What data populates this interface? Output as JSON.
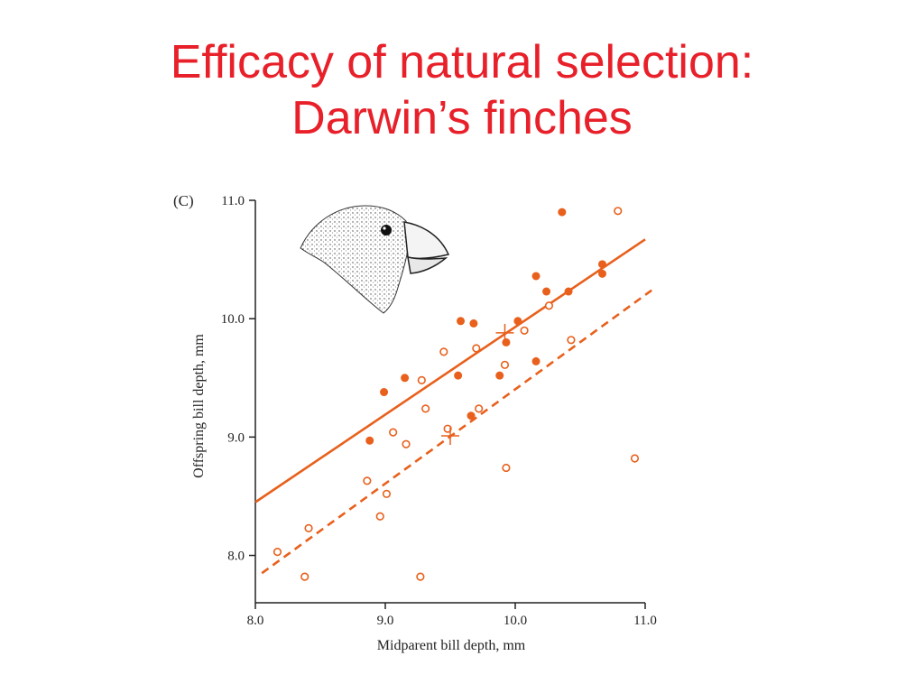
{
  "slide": {
    "title_line1": "Efficacy of natural selection:",
    "title_line2": "Darwin’s finches",
    "title_color": "#e8202a"
  },
  "chart_data": {
    "type": "scatter",
    "panel_label": "(C)",
    "xlabel": "Midparent bill depth, mm",
    "ylabel": "Offspring bill depth, mm",
    "xlim": [
      8.0,
      11.0
    ],
    "ylim": [
      7.6,
      11.0
    ],
    "x_ticks": [
      "8.0",
      "9.0",
      "10.0",
      "11.0"
    ],
    "y_ticks": [
      "8.0",
      "9.0",
      "10.0",
      "11.0"
    ],
    "grid": false,
    "colors": {
      "series": "#e8601c",
      "axis": "#222222"
    },
    "series": [
      {
        "marker": "filled-circle",
        "points": [
          [
            8.88,
            8.97
          ],
          [
            8.99,
            9.38
          ],
          [
            9.15,
            9.5
          ],
          [
            9.56,
            9.52
          ],
          [
            9.58,
            9.98
          ],
          [
            9.68,
            9.96
          ],
          [
            9.66,
            9.18
          ],
          [
            9.88,
            9.52
          ],
          [
            9.93,
            9.8
          ],
          [
            10.02,
            9.98
          ],
          [
            10.16,
            9.64
          ],
          [
            10.16,
            10.36
          ],
          [
            10.24,
            10.23
          ],
          [
            10.36,
            10.9
          ],
          [
            10.41,
            10.23
          ],
          [
            10.67,
            10.46
          ],
          [
            10.67,
            10.38
          ]
        ],
        "trend": {
          "style": "solid",
          "from": [
            8.0,
            8.45
          ],
          "to": [
            11.0,
            10.67
          ]
        },
        "mean_marker": [
          9.92,
          9.88
        ]
      },
      {
        "marker": "open-circle",
        "points": [
          [
            8.17,
            8.03
          ],
          [
            8.38,
            7.82
          ],
          [
            8.41,
            8.23
          ],
          [
            8.86,
            8.63
          ],
          [
            8.96,
            8.33
          ],
          [
            9.01,
            8.52
          ],
          [
            9.06,
            9.04
          ],
          [
            9.16,
            8.94
          ],
          [
            9.27,
            7.82
          ],
          [
            9.28,
            9.48
          ],
          [
            9.31,
            9.24
          ],
          [
            9.45,
            9.72
          ],
          [
            9.48,
            9.07
          ],
          [
            9.7,
            9.75
          ],
          [
            9.72,
            9.24
          ],
          [
            9.92,
            9.61
          ],
          [
            9.93,
            8.74
          ],
          [
            10.07,
            9.9
          ],
          [
            10.26,
            10.11
          ],
          [
            10.43,
            9.82
          ],
          [
            10.79,
            10.91
          ],
          [
            10.92,
            8.82
          ]
        ],
        "trend": {
          "style": "dashed",
          "from": [
            8.05,
            7.85
          ],
          "to": [
            11.05,
            10.24
          ]
        },
        "mean_marker": [
          9.5,
          9.01
        ]
      }
    ]
  }
}
